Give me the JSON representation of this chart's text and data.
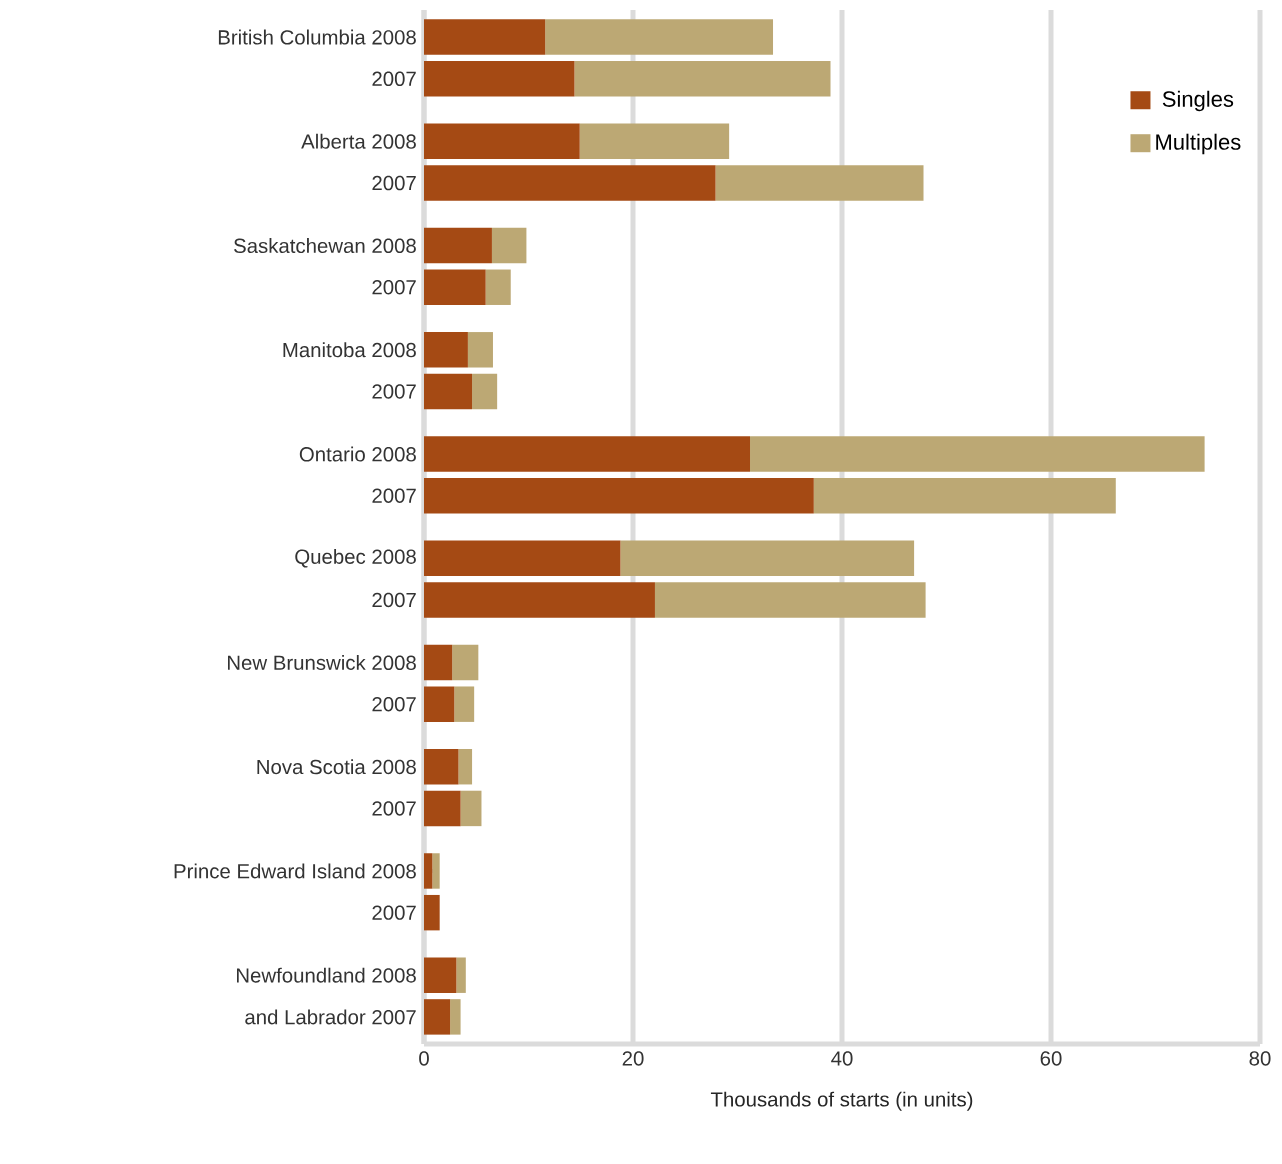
{
  "chart_data": {
    "type": "bar",
    "orientation": "horizontal",
    "stacked": true,
    "xlabel": "Thousands of starts (in units)",
    "categories": [
      "British Columbia 2008",
      "2007",
      "Alberta 2008",
      "2007",
      "Saskatchewan 2008",
      "2007",
      "Manitoba 2008",
      "2007",
      "Ontario 2008",
      "2007",
      "Quebec 2008",
      "2007",
      "New Brunswick 2008",
      "2007",
      "Nova Scotia 2008",
      "2007",
      "Prince Edward Island 2008",
      "2007",
      "Newfoundland 2008",
      "and Labrador 2007"
    ],
    "series": [
      {
        "name": "Singles",
        "color": "#a54a14",
        "values": [
          11.6,
          14.4,
          14.9,
          27.9,
          6.5,
          5.9,
          4.2,
          4.6,
          31.2,
          37.3,
          18.8,
          22.1,
          2.7,
          2.9,
          3.3,
          3.5,
          0.8,
          1.5,
          3.1,
          2.5
        ]
      },
      {
        "name": "Multiples",
        "color": "#bca874",
        "values": [
          21.8,
          24.5,
          14.3,
          19.9,
          3.3,
          2.4,
          2.4,
          2.4,
          43.5,
          28.9,
          28.1,
          25.9,
          2.5,
          1.9,
          1.3,
          2.0,
          0.7,
          0,
          0.9,
          1.0
        ]
      }
    ],
    "xlim": [
      0,
      80
    ],
    "xticks": [
      0,
      20,
      40,
      60,
      80
    ],
    "grid": "x",
    "legend": "top right"
  }
}
